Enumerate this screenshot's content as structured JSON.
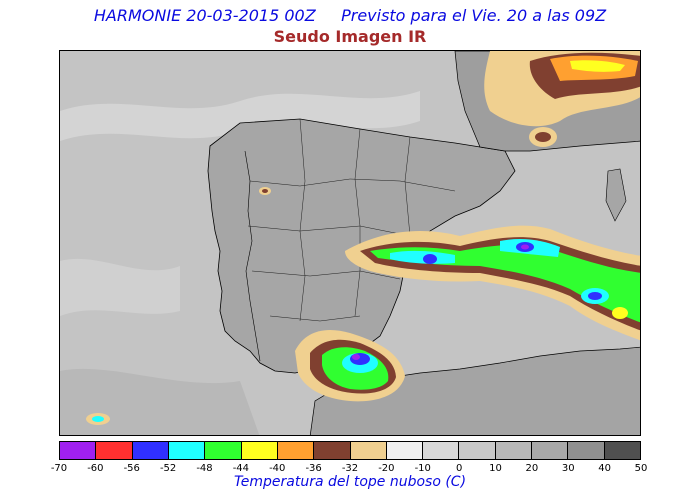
{
  "header": {
    "title": "HARMONIE 20-03-2015 00Z     Previsto para el Vie. 20 a las 09Z",
    "subtitle": "Seudo Imagen IR"
  },
  "colorbar": {
    "label": "Temperatura del tope nuboso (C)",
    "ticks": [
      "-70",
      "-60",
      "-56",
      "-52",
      "-48",
      "-44",
      "-40",
      "-36",
      "-32",
      "-20",
      "-10",
      "0",
      "10",
      "20",
      "30",
      "40",
      "50"
    ],
    "colors": [
      "#a020f0",
      "#ff3030",
      "#3030ff",
      "#20ffff",
      "#30ff30",
      "#ffff20",
      "#ffa030",
      "#804030",
      "#f0d090",
      "#f0f0f0",
      "#d8d8d8",
      "#c8c8c8",
      "#b8b8b8",
      "#a8a8a8",
      "#909090",
      "#505050"
    ]
  },
  "map": {
    "background_color": "#c8c8c8",
    "land_color": "#a8a8a8",
    "coast_color": "#000000"
  }
}
